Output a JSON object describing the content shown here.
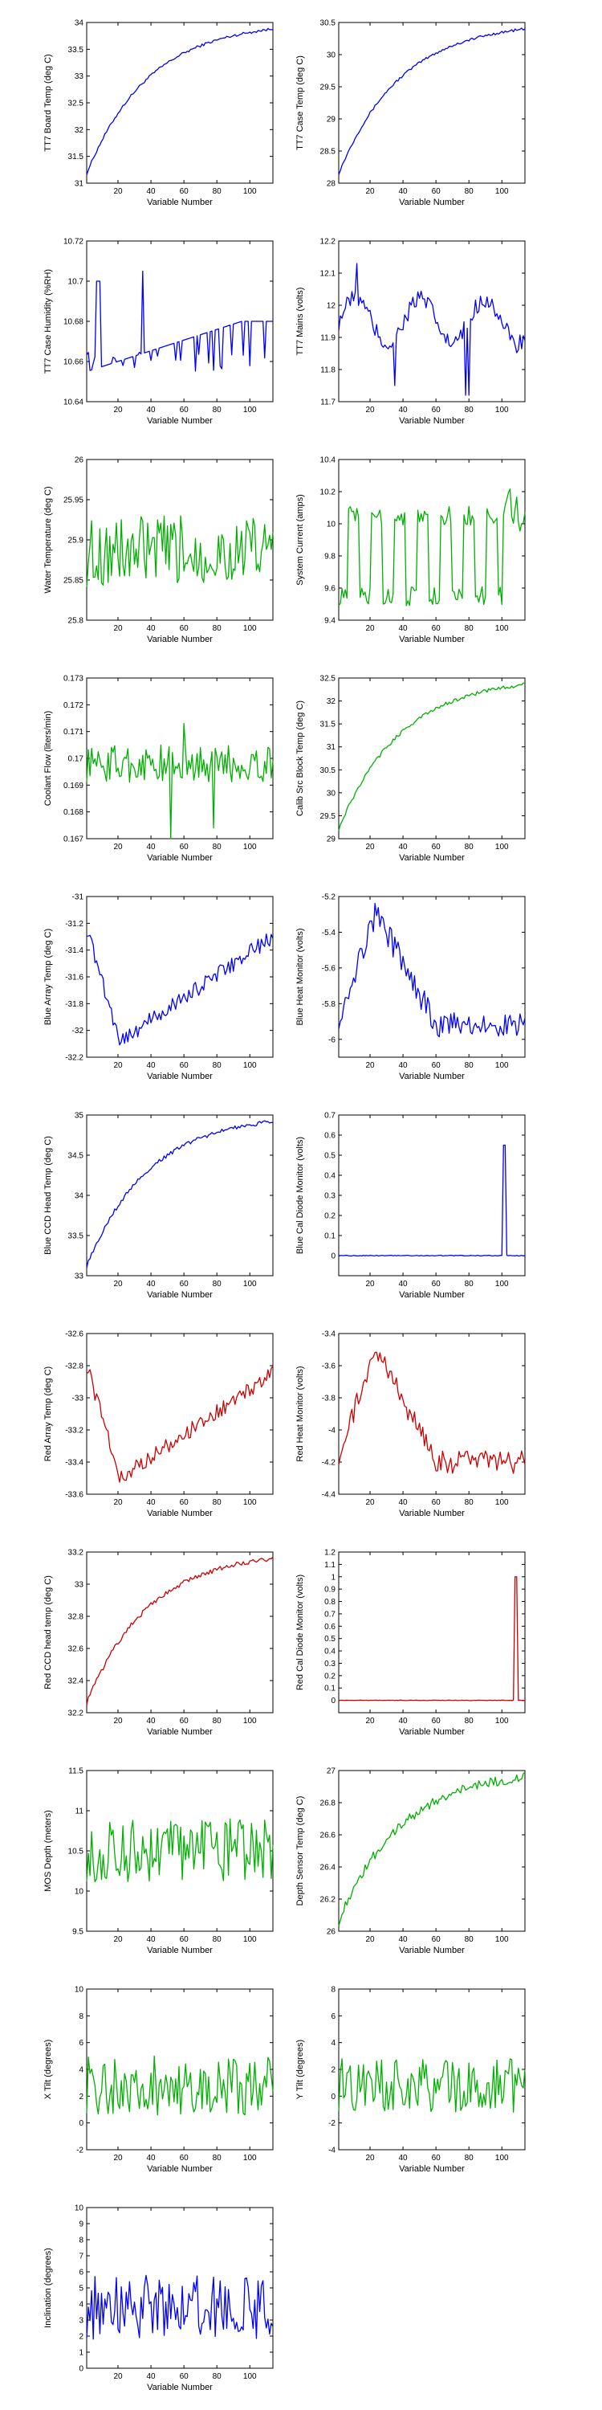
{
  "chart_data": [
    {
      "type": "line",
      "ylabel": "TT7 Board Temp (deg C)",
      "xlabel": "Variable Number",
      "color": "#0000ff",
      "shape": "rise",
      "noise": 0.025,
      "xlim": [
        1,
        114
      ],
      "ylim": [
        31,
        34
      ],
      "xticks": [
        20,
        40,
        60,
        80,
        100
      ],
      "yticks": [
        31,
        31.5,
        32,
        32.5,
        33,
        33.5,
        34
      ],
      "yticklabels": [
        "31",
        "31.5",
        "32",
        "32.5",
        "33",
        "33.5",
        "34"
      ]
    },
    {
      "type": "line",
      "ylabel": "TT7 Case Temp (deg C)",
      "xlabel": "Variable Number",
      "color": "#0000ff",
      "shape": "rise",
      "noise": 0.02,
      "xlim": [
        1,
        114
      ],
      "ylim": [
        28,
        30.5
      ],
      "xticks": [
        20,
        40,
        60,
        80,
        100
      ],
      "yticks": [
        28,
        28.5,
        29,
        29.5,
        30,
        30.5
      ],
      "yticklabels": [
        "28",
        "28.5",
        "29",
        "29.5",
        "30",
        "30.5"
      ]
    },
    {
      "type": "line",
      "ylabel": "TT7 Case Humidity (%RH)",
      "xlabel": "Variable Number",
      "color": "#0000ff",
      "shape": "humid",
      "noise": 0.001,
      "xlim": [
        1,
        114
      ],
      "ylim": [
        10.64,
        10.72
      ],
      "xticks": [
        20,
        40,
        60,
        80,
        100
      ],
      "yticks": [
        10.64,
        10.66,
        10.68,
        10.7,
        10.72
      ],
      "yticklabels": [
        "10.64",
        "10.66",
        "10.68",
        "10.7",
        "10.72"
      ]
    },
    {
      "type": "line",
      "ylabel": "TT7 Mains  (volts)",
      "xlabel": "Variable Number",
      "color": "#0000ff",
      "shape": "mains",
      "noise": 0.03,
      "xlim": [
        1,
        114
      ],
      "ylim": [
        11.7,
        12.2
      ],
      "xticks": [
        20,
        40,
        60,
        80,
        100
      ],
      "yticks": [
        11.7,
        11.8,
        11.9,
        12,
        12.1,
        12.2
      ],
      "yticklabels": [
        "11.7",
        "11.8",
        "11.9",
        "12",
        "12.1",
        "12.2"
      ]
    },
    {
      "type": "line",
      "ylabel": "Water Temperature (deg C)",
      "xlabel": "Variable Number",
      "color": "#00b000",
      "shape": "noise",
      "noise": 0.045,
      "base": 25.885,
      "xlim": [
        1,
        114
      ],
      "ylim": [
        25.8,
        26
      ],
      "xticks": [
        20,
        40,
        60,
        80,
        100
      ],
      "yticks": [
        25.8,
        25.85,
        25.9,
        25.95,
        26
      ],
      "yticklabels": [
        "25.8",
        "25.85",
        "25.9",
        "25.95",
        "26"
      ]
    },
    {
      "type": "line",
      "ylabel": "System Current (amps)",
      "xlabel": "Variable Number",
      "color": "#00b000",
      "shape": "current",
      "noise": 0.06,
      "xlim": [
        1,
        114
      ],
      "ylim": [
        9.4,
        10.4
      ],
      "xticks": [
        20,
        40,
        60,
        80,
        100
      ],
      "yticks": [
        9.4,
        9.6,
        9.8,
        10,
        10.2,
        10.4
      ],
      "yticklabels": [
        "9.4",
        "9.6",
        "9.8",
        "10",
        "10.2",
        "10.4"
      ]
    },
    {
      "type": "line",
      "ylabel": "Coolant Flow (liters/min)",
      "xlabel": "Variable Number",
      "color": "#00b000",
      "shape": "flow",
      "noise": 0.0007,
      "base": 0.1698,
      "xlim": [
        1,
        114
      ],
      "ylim": [
        0.167,
        0.173
      ],
      "xticks": [
        20,
        40,
        60,
        80,
        100
      ],
      "yticks": [
        0.167,
        0.168,
        0.169,
        0.17,
        0.171,
        0.172,
        0.173
      ],
      "yticklabels": [
        "0.167",
        "0.168",
        "0.169",
        "0.17",
        "0.171",
        "0.172",
        "0.173"
      ]
    },
    {
      "type": "line",
      "ylabel": "Calib Src Block Temp (deg C)",
      "xlabel": "Variable Number",
      "color": "#00b000",
      "shape": "rise",
      "noise": 0.04,
      "xlim": [
        1,
        114
      ],
      "ylim": [
        29,
        32.5
      ],
      "xticks": [
        20,
        40,
        60,
        80,
        100
      ],
      "yticks": [
        29,
        29.5,
        30,
        30.5,
        31,
        31.5,
        32,
        32.5
      ],
      "yticklabels": [
        "29",
        "29.5",
        "30",
        "30.5",
        "31",
        "31.5",
        "32",
        "32.5"
      ]
    },
    {
      "type": "line",
      "ylabel": "Blue Array Temp (deg C)",
      "xlabel": "Variable Number",
      "color": "#0000ff",
      "shape": "dip",
      "noise": 0.06,
      "xlim": [
        1,
        114
      ],
      "ylim": [
        -32.2,
        -31
      ],
      "xticks": [
        20,
        40,
        60,
        80,
        100
      ],
      "yticks": [
        -32.2,
        -32,
        -31.8,
        -31.6,
        -31.4,
        -31.2,
        -31
      ],
      "yticklabels": [
        "-32.2",
        "-32",
        "-31.8",
        "-31.6",
        "-31.4",
        "-31.2",
        "-31"
      ]
    },
    {
      "type": "line",
      "ylabel": "Blue Heat Monitor (volts)",
      "xlabel": "Variable Number",
      "color": "#0000ff",
      "shape": "hump",
      "noise": 0.07,
      "xlim": [
        1,
        114
      ],
      "ylim": [
        -6.1,
        -5.2
      ],
      "xticks": [
        20,
        40,
        60,
        80,
        100
      ],
      "yticks": [
        -6,
        -5.8,
        -5.6,
        -5.4,
        -5.2
      ],
      "yticklabels": [
        "-6",
        "-5.8",
        "-5.6",
        "-5.4",
        "-5.2"
      ]
    },
    {
      "type": "line",
      "ylabel": "Blue CCD Head Temp (deg C)",
      "xlabel": "Variable Number",
      "color": "#0000ff",
      "shape": "rise",
      "noise": 0.025,
      "xlim": [
        1,
        114
      ],
      "ylim": [
        33,
        35
      ],
      "xticks": [
        20,
        40,
        60,
        80,
        100
      ],
      "yticks": [
        33,
        33.5,
        34,
        34.5,
        35
      ],
      "yticklabels": [
        "33",
        "33.5",
        "34",
        "34.5",
        "35"
      ]
    },
    {
      "type": "line",
      "ylabel": "Blue Cal Diode Monitor (volts)",
      "xlabel": "Variable Number",
      "color": "#0000ff",
      "shape": "spike",
      "spike_at": 101,
      "spike_val": 0.55,
      "noise": 0.004,
      "xlim": [
        1,
        114
      ],
      "ylim": [
        -0.1,
        0.7
      ],
      "xticks": [
        20,
        40,
        60,
        80,
        100
      ],
      "yticks": [
        0,
        0.1,
        0.2,
        0.3,
        0.4,
        0.5,
        0.6,
        0.7
      ],
      "yticklabels": [
        "0",
        "0.1",
        "0.2",
        "0.3",
        "0.4",
        "0.5",
        "0.6",
        "0.7"
      ]
    },
    {
      "type": "line",
      "ylabel": "Red Array Temp (deg C)",
      "xlabel": "Variable Number",
      "color": "#cc0000",
      "shape": "dip",
      "noise": 0.05,
      "xlim": [
        1,
        114
      ],
      "ylim": [
        -33.6,
        -32.6
      ],
      "xticks": [
        20,
        40,
        60,
        80,
        100
      ],
      "yticks": [
        -33.6,
        -33.4,
        -33.2,
        -33,
        -32.8,
        -32.6
      ],
      "yticklabels": [
        "-33.6",
        "-33.4",
        "-33.2",
        "-33",
        "-32.8",
        "-32.6"
      ]
    },
    {
      "type": "line",
      "ylabel": "Red Heat Monitor (volts)",
      "xlabel": "Variable Number",
      "color": "#cc0000",
      "shape": "hump",
      "noise": 0.07,
      "xlim": [
        1,
        114
      ],
      "ylim": [
        -4.4,
        -3.4
      ],
      "xticks": [
        20,
        40,
        60,
        80,
        100
      ],
      "yticks": [
        -4.4,
        -4.2,
        -4,
        -3.8,
        -3.6,
        -3.4
      ],
      "yticklabels": [
        "-4.4",
        "-4.2",
        "-4",
        "-3.8",
        "-3.6",
        "-3.4"
      ]
    },
    {
      "type": "line",
      "ylabel": "Red CCD head temp (deg C)",
      "xlabel": "Variable Number",
      "color": "#cc0000",
      "shape": "rise",
      "noise": 0.015,
      "xlim": [
        1,
        114
      ],
      "ylim": [
        32.2,
        33.2
      ],
      "xticks": [
        20,
        40,
        60,
        80,
        100
      ],
      "yticks": [
        32.2,
        32.4,
        32.6,
        32.8,
        33,
        33.2
      ],
      "yticklabels": [
        "32.2",
        "32.4",
        "32.6",
        "32.8",
        "33",
        "33.2"
      ]
    },
    {
      "type": "line",
      "ylabel": "Red Cal Diode Monitor (volts)",
      "xlabel": "Variable Number",
      "color": "#cc0000",
      "shape": "spike",
      "spike_at": 108,
      "spike_val": 1.0,
      "noise": 0.004,
      "xlim": [
        1,
        114
      ],
      "ylim": [
        -0.1,
        1.2
      ],
      "xticks": [
        20,
        40,
        60,
        80,
        100
      ],
      "yticks": [
        0,
        0.1,
        0.2,
        0.3,
        0.4,
        0.5,
        0.6,
        0.7,
        0.8,
        0.9,
        1,
        1.1,
        1.2
      ],
      "yticklabels": [
        "0",
        "0.1",
        "0.2",
        "0.3",
        "0.4",
        "0.5",
        "0.6",
        "0.7",
        "0.8",
        "0.9",
        "1",
        "1.1",
        "1.2"
      ]
    },
    {
      "type": "line",
      "ylabel": "MOS Depth  (meters)",
      "xlabel": "Variable Number",
      "color": "#00b000",
      "shape": "noise",
      "noise": 0.4,
      "base": 10.5,
      "xlim": [
        1,
        114
      ],
      "ylim": [
        9.5,
        11.5
      ],
      "xticks": [
        20,
        40,
        60,
        80,
        100
      ],
      "yticks": [
        9.5,
        10,
        10.5,
        11,
        11.5
      ],
      "yticklabels": [
        "9.5",
        "10",
        "10.5",
        "11",
        "11.5"
      ]
    },
    {
      "type": "line",
      "ylabel": "Depth Sensor Temp (deg C)",
      "xlabel": "Variable Number",
      "color": "#00b000",
      "shape": "rise",
      "noise": 0.03,
      "xlim": [
        1,
        114
      ],
      "ylim": [
        26,
        27
      ],
      "xticks": [
        20,
        40,
        60,
        80,
        100
      ],
      "yticks": [
        26,
        26.2,
        26.4,
        26.6,
        26.8,
        27
      ],
      "yticklabels": [
        "26",
        "26.2",
        "26.4",
        "26.6",
        "26.8",
        "27"
      ]
    },
    {
      "type": "line",
      "ylabel": "X Tilt  (degrees)",
      "xlabel": "Variable Number",
      "color": "#00b000",
      "shape": "noise",
      "noise": 2.2,
      "base": 2.8,
      "xlim": [
        1,
        114
      ],
      "ylim": [
        -2,
        10
      ],
      "xticks": [
        20,
        40,
        60,
        80,
        100
      ],
      "yticks": [
        -2,
        0,
        2,
        4,
        6,
        8,
        10
      ],
      "yticklabels": [
        "-2",
        "0",
        "2",
        "4",
        "6",
        "8",
        "10"
      ]
    },
    {
      "type": "line",
      "ylabel": "Y Tilt  (degrees)",
      "xlabel": "Variable Number",
      "color": "#00b000",
      "shape": "noise",
      "noise": 2.0,
      "base": 0.8,
      "xlim": [
        1,
        114
      ],
      "ylim": [
        -4,
        8
      ],
      "xticks": [
        20,
        40,
        60,
        80,
        100
      ],
      "yticks": [
        -4,
        -2,
        0,
        2,
        4,
        6,
        8
      ],
      "yticklabels": [
        "-4",
        "-2",
        "0",
        "2",
        "4",
        "6",
        "8"
      ]
    },
    {
      "type": "line",
      "ylabel": "Inclination  (degrees)",
      "xlabel": "Variable Number",
      "color": "#0000ff",
      "shape": "noise",
      "noise": 2.0,
      "base": 3.8,
      "xlim": [
        1,
        114
      ],
      "ylim": [
        0,
        10
      ],
      "xticks": [
        20,
        40,
        60,
        80,
        100
      ],
      "yticks": [
        0,
        1,
        2,
        3,
        4,
        5,
        6,
        7,
        8,
        9,
        10
      ],
      "yticklabels": [
        "0",
        "1",
        "2",
        "3",
        "4",
        "5",
        "6",
        "7",
        "8",
        "9",
        "10"
      ]
    }
  ]
}
